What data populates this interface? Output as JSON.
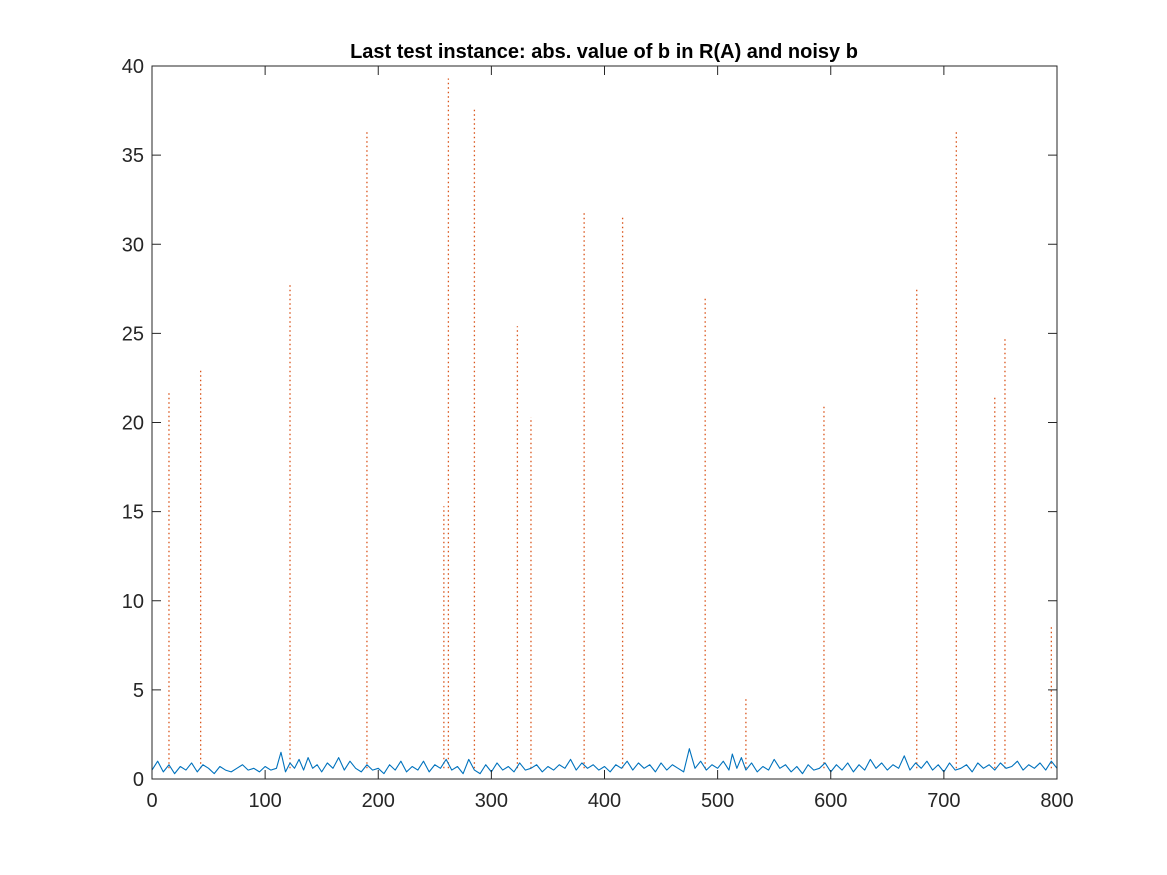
{
  "chart_data": {
    "type": "line",
    "title": "Last test instance: abs. value of b in R(A) and noisy b",
    "xlabel": "",
    "ylabel": "",
    "xlim": [
      0,
      800
    ],
    "ylim": [
      0,
      40
    ],
    "xticks": [
      0,
      100,
      200,
      300,
      400,
      500,
      600,
      700,
      800
    ],
    "yticks": [
      0,
      5,
      10,
      15,
      20,
      25,
      30,
      35,
      40
    ],
    "grid": false,
    "legend": "none",
    "series": [
      {
        "style": "dotted",
        "color": "#D95319",
        "spikes": [
          [
            15,
            21.7
          ],
          [
            43,
            23.0
          ],
          [
            122,
            27.7
          ],
          [
            190,
            36.4
          ],
          [
            258,
            15.3
          ],
          [
            262,
            39.3
          ],
          [
            285,
            37.6
          ],
          [
            323,
            25.4
          ],
          [
            335,
            20.3
          ],
          [
            382,
            31.9
          ],
          [
            416,
            31.6
          ],
          [
            489,
            27.1
          ],
          [
            525,
            4.5
          ],
          [
            594,
            21.0
          ],
          [
            676,
            27.6
          ],
          [
            711,
            36.3
          ],
          [
            745,
            21.5
          ],
          [
            754,
            24.7
          ],
          [
            795,
            8.6
          ]
        ]
      },
      {
        "style": "solid",
        "color": "#0072BD",
        "points": [
          [
            0,
            0.5
          ],
          [
            5,
            1.0
          ],
          [
            10,
            0.4
          ],
          [
            15,
            0.8
          ],
          [
            20,
            0.3
          ],
          [
            25,
            0.7
          ],
          [
            30,
            0.5
          ],
          [
            35,
            0.9
          ],
          [
            40,
            0.4
          ],
          [
            45,
            0.8
          ],
          [
            50,
            0.6
          ],
          [
            55,
            0.3
          ],
          [
            60,
            0.7
          ],
          [
            65,
            0.5
          ],
          [
            70,
            0.4
          ],
          [
            75,
            0.6
          ],
          [
            80,
            0.8
          ],
          [
            85,
            0.5
          ],
          [
            90,
            0.6
          ],
          [
            95,
            0.4
          ],
          [
            100,
            0.7
          ],
          [
            105,
            0.5
          ],
          [
            110,
            0.6
          ],
          [
            114,
            1.5
          ],
          [
            118,
            0.4
          ],
          [
            122,
            0.9
          ],
          [
            126,
            0.6
          ],
          [
            130,
            1.1
          ],
          [
            134,
            0.5
          ],
          [
            138,
            1.2
          ],
          [
            142,
            0.6
          ],
          [
            146,
            0.8
          ],
          [
            150,
            0.4
          ],
          [
            155,
            0.9
          ],
          [
            160,
            0.6
          ],
          [
            165,
            1.2
          ],
          [
            170,
            0.5
          ],
          [
            175,
            1.0
          ],
          [
            180,
            0.6
          ],
          [
            185,
            0.4
          ],
          [
            190,
            0.8
          ],
          [
            195,
            0.5
          ],
          [
            200,
            0.6
          ],
          [
            205,
            0.3
          ],
          [
            210,
            0.8
          ],
          [
            215,
            0.5
          ],
          [
            220,
            1.0
          ],
          [
            225,
            0.4
          ],
          [
            230,
            0.7
          ],
          [
            235,
            0.5
          ],
          [
            240,
            1.0
          ],
          [
            245,
            0.4
          ],
          [
            250,
            0.8
          ],
          [
            255,
            0.6
          ],
          [
            260,
            1.1
          ],
          [
            265,
            0.5
          ],
          [
            270,
            0.7
          ],
          [
            275,
            0.3
          ],
          [
            280,
            1.1
          ],
          [
            285,
            0.5
          ],
          [
            290,
            0.3
          ],
          [
            295,
            0.8
          ],
          [
            300,
            0.4
          ],
          [
            305,
            0.9
          ],
          [
            310,
            0.5
          ],
          [
            315,
            0.7
          ],
          [
            320,
            0.4
          ],
          [
            325,
            0.9
          ],
          [
            330,
            0.5
          ],
          [
            335,
            0.6
          ],
          [
            340,
            0.8
          ],
          [
            345,
            0.4
          ],
          [
            350,
            0.7
          ],
          [
            355,
            0.5
          ],
          [
            360,
            0.8
          ],
          [
            365,
            0.6
          ],
          [
            370,
            1.1
          ],
          [
            375,
            0.5
          ],
          [
            380,
            0.9
          ],
          [
            385,
            0.6
          ],
          [
            390,
            0.8
          ],
          [
            395,
            0.5
          ],
          [
            400,
            0.7
          ],
          [
            405,
            0.4
          ],
          [
            410,
            0.8
          ],
          [
            415,
            0.6
          ],
          [
            420,
            1.0
          ],
          [
            425,
            0.5
          ],
          [
            430,
            0.9
          ],
          [
            435,
            0.6
          ],
          [
            440,
            0.8
          ],
          [
            445,
            0.4
          ],
          [
            450,
            0.9
          ],
          [
            455,
            0.5
          ],
          [
            460,
            0.8
          ],
          [
            465,
            0.6
          ],
          [
            470,
            0.4
          ],
          [
            475,
            1.7
          ],
          [
            480,
            0.6
          ],
          [
            485,
            1.0
          ],
          [
            490,
            0.5
          ],
          [
            495,
            0.8
          ],
          [
            500,
            0.6
          ],
          [
            505,
            1.0
          ],
          [
            510,
            0.5
          ],
          [
            513,
            1.4
          ],
          [
            517,
            0.6
          ],
          [
            521,
            1.2
          ],
          [
            525,
            0.5
          ],
          [
            530,
            0.9
          ],
          [
            535,
            0.4
          ],
          [
            540,
            0.7
          ],
          [
            545,
            0.5
          ],
          [
            550,
            1.1
          ],
          [
            555,
            0.6
          ],
          [
            560,
            0.8
          ],
          [
            565,
            0.4
          ],
          [
            570,
            0.7
          ],
          [
            575,
            0.3
          ],
          [
            580,
            0.8
          ],
          [
            585,
            0.5
          ],
          [
            590,
            0.6
          ],
          [
            595,
            0.9
          ],
          [
            600,
            0.4
          ],
          [
            605,
            0.8
          ],
          [
            610,
            0.5
          ],
          [
            615,
            0.9
          ],
          [
            620,
            0.4
          ],
          [
            625,
            0.8
          ],
          [
            630,
            0.5
          ],
          [
            635,
            1.1
          ],
          [
            640,
            0.6
          ],
          [
            645,
            0.9
          ],
          [
            650,
            0.5
          ],
          [
            655,
            0.8
          ],
          [
            660,
            0.6
          ],
          [
            665,
            1.3
          ],
          [
            670,
            0.5
          ],
          [
            675,
            0.9
          ],
          [
            680,
            0.6
          ],
          [
            685,
            1.0
          ],
          [
            690,
            0.5
          ],
          [
            695,
            0.8
          ],
          [
            700,
            0.4
          ],
          [
            705,
            0.9
          ],
          [
            710,
            0.5
          ],
          [
            715,
            0.6
          ],
          [
            720,
            0.8
          ],
          [
            725,
            0.4
          ],
          [
            730,
            0.9
          ],
          [
            735,
            0.6
          ],
          [
            740,
            0.8
          ],
          [
            745,
            0.5
          ],
          [
            750,
            0.9
          ],
          [
            755,
            0.6
          ],
          [
            760,
            0.7
          ],
          [
            765,
            1.0
          ],
          [
            770,
            0.5
          ],
          [
            775,
            0.8
          ],
          [
            780,
            0.6
          ],
          [
            785,
            0.9
          ],
          [
            790,
            0.5
          ],
          [
            795,
            1.0
          ],
          [
            800,
            0.6
          ]
        ]
      }
    ]
  }
}
